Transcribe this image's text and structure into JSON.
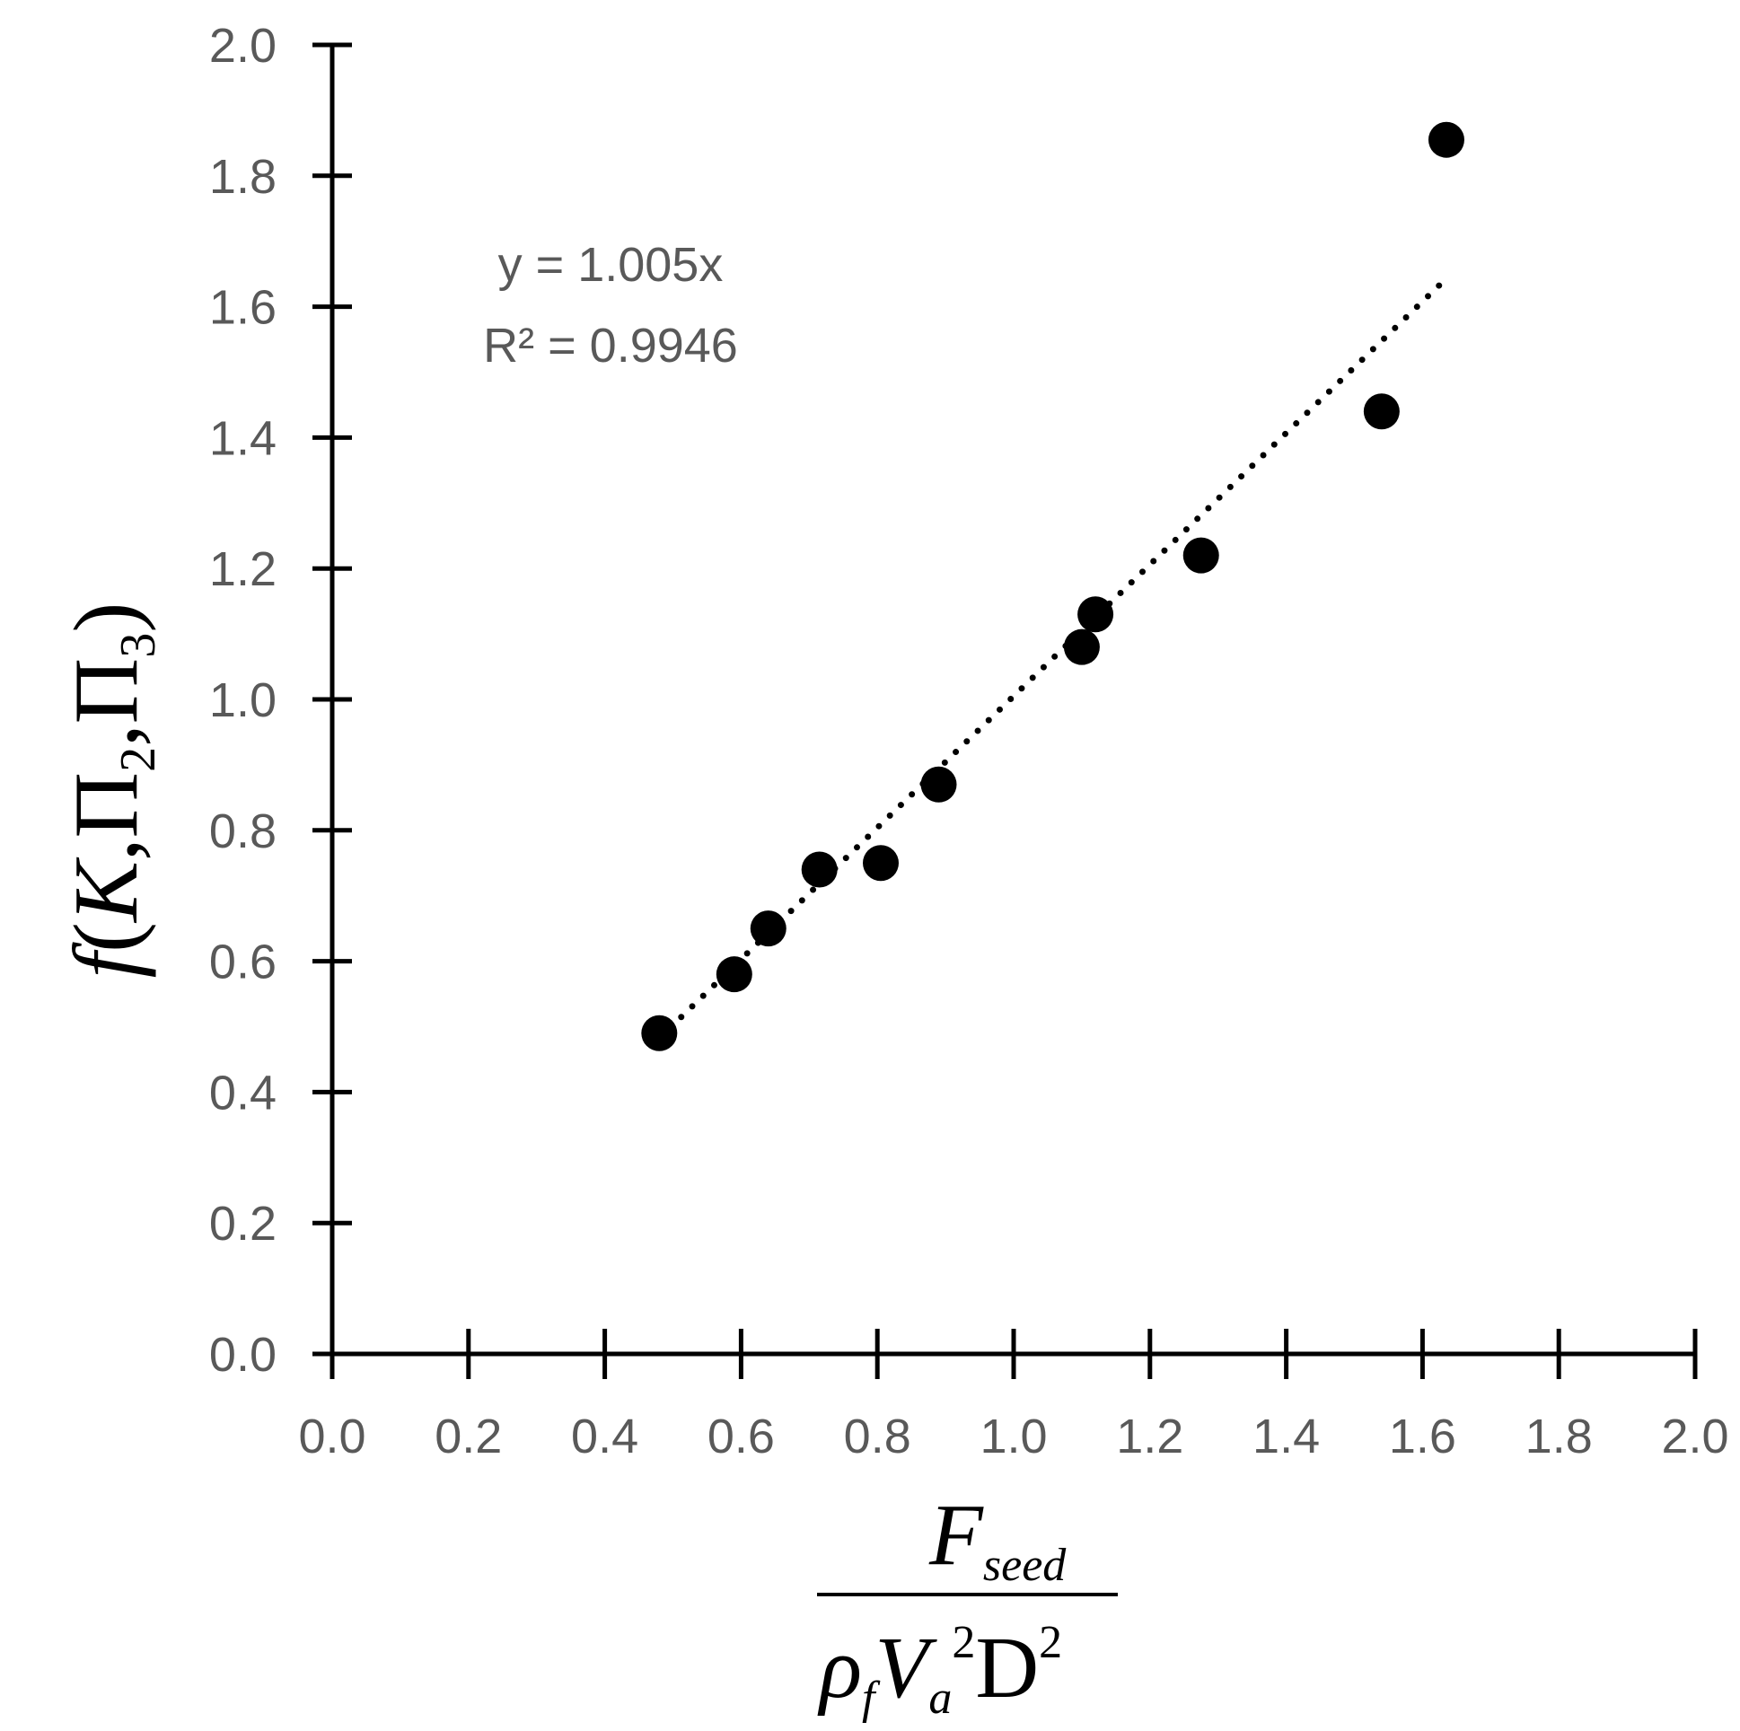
{
  "chart_data": {
    "type": "scatter",
    "xlim": [
      0.0,
      2.0
    ],
    "ylim": [
      0.0,
      2.0
    ],
    "xticks": [
      "0.0",
      "0.2",
      "0.4",
      "0.6",
      "0.8",
      "1.0",
      "1.2",
      "1.4",
      "1.6",
      "1.8",
      "2.0"
    ],
    "yticks": [
      "0.0",
      "0.2",
      "0.4",
      "0.6",
      "0.8",
      "1.0",
      "1.2",
      "1.4",
      "1.6",
      "1.8",
      "2.0"
    ],
    "xlabel": {
      "numerator": "F",
      "numerator_sub": "seed",
      "denominator": "ρ",
      "denominator_sub1": "f",
      "denominator_v": "V",
      "denominator_sub2": "a",
      "denominator_sup1": "2",
      "denominator_d": "D",
      "denominator_sup2": "2"
    },
    "ylabel": {
      "f": "f",
      "open": "(",
      "k": "K",
      "comma1": ",",
      "pi1": "Π",
      "sub1": "2",
      "comma2": ",",
      "pi2": "Π",
      "sub2": "3",
      "close": ")"
    },
    "series": [
      {
        "points": [
          {
            "x": 0.48,
            "y": 0.49
          },
          {
            "x": 0.59,
            "y": 0.58
          },
          {
            "x": 0.64,
            "y": 0.65
          },
          {
            "x": 0.715,
            "y": 0.74
          },
          {
            "x": 0.805,
            "y": 0.75
          },
          {
            "x": 0.89,
            "y": 0.87
          },
          {
            "x": 1.1,
            "y": 1.08
          },
          {
            "x": 1.12,
            "y": 1.13
          },
          {
            "x": 1.275,
            "y": 1.22
          },
          {
            "x": 1.54,
            "y": 1.44
          },
          {
            "x": 1.635,
            "y": 1.855
          }
        ],
        "color": "#000000"
      }
    ],
    "trendline": {
      "slope": 1.005,
      "x_range": [
        0.48,
        1.635
      ],
      "style": "dotted",
      "equation": "y = 1.005x",
      "r2": "R² = 0.9946"
    }
  }
}
